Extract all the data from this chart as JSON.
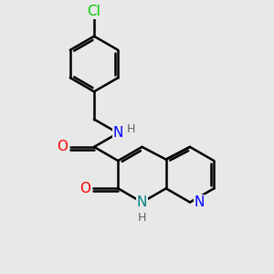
{
  "bg_color": "#e8e8e8",
  "bond_color": "#000000",
  "bond_width": 1.8,
  "atom_colors": {
    "N_blue": "#0000ff",
    "N_teal": "#008080",
    "O": "#ff0000",
    "Cl": "#00cc00",
    "H": "#606060"
  },
  "font_size": 11,
  "font_size_h": 9,
  "fig_width": 3.0,
  "fig_height": 3.0,
  "dpi": 100,
  "xlim": [
    0,
    10
  ],
  "ylim": [
    0,
    10
  ],
  "bl": 1.05
}
